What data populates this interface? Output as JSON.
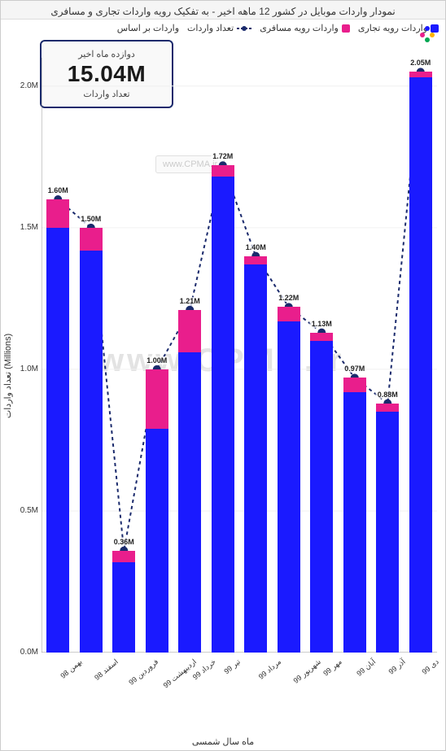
{
  "title": "نمودار واردات موبایل در کشور 12 ماهه اخیر - به تفکیک رویه واردات تجاری و مسافری",
  "legend": {
    "imports_by": {
      "label": "واردات بر اساس"
    },
    "total": {
      "label": "تعداد واردات",
      "color": "#1a2a6c",
      "style": "dashed-dot"
    },
    "passenger": {
      "label": "واردات رویه مسافری",
      "color": "#e91e8c"
    },
    "commercial": {
      "label": "واردات رویه تجاری",
      "color": "#1a1aff"
    }
  },
  "card": {
    "header": "دوازده ماه اخیر",
    "value": "15.04M",
    "footer": "تعداد واردات"
  },
  "watermark_small": "www.CPMA.ir",
  "watermark_big": "www.CPMA.ir",
  "axes": {
    "y": {
      "label": "تعداد واردات (Millions)",
      "min": 0.0,
      "max": 2.1,
      "ticks": [
        0.0,
        0.5,
        1.0,
        1.5,
        2.0
      ],
      "tick_labels": [
        "0.0M",
        "0.5M",
        "1.0M",
        "1.5M",
        "2.0M"
      ]
    },
    "x": {
      "label": "ماه سال شمسی"
    }
  },
  "chart": {
    "type": "stacked-bar-with-line",
    "bar_width_ratio": 0.68,
    "background": "#ffffff",
    "grid_color": "#f0f0f0",
    "categories": [
      "بهمن 98",
      "اسفند 98",
      "فروردین 99",
      "اردیبهشت 99",
      "خرداد 99",
      "تیر 99",
      "مرداد 99",
      "شهریور 99",
      "مهر 99",
      "آبان 99",
      "آذر 99",
      "دی 99"
    ],
    "series": {
      "commercial": {
        "color": "#1a1aff",
        "values": [
          1.5,
          1.42,
          0.32,
          0.79,
          1.06,
          1.68,
          1.37,
          1.17,
          1.1,
          0.92,
          0.85,
          2.03
        ]
      },
      "passenger": {
        "color": "#e91e8c",
        "values": [
          0.1,
          0.08,
          0.04,
          0.21,
          0.15,
          0.04,
          0.03,
          0.05,
          0.03,
          0.05,
          0.03,
          0.02
        ]
      }
    },
    "totals": {
      "values": [
        1.6,
        1.5,
        0.36,
        1.0,
        1.21,
        1.72,
        1.4,
        1.22,
        1.13,
        0.97,
        0.88,
        2.05
      ],
      "labels": [
        "1.60M",
        "1.50M",
        "0.36M",
        "1.00M",
        "1.21M",
        "1.72M",
        "1.40M",
        "1.22M",
        "1.13M",
        "0.97M",
        "0.88M",
        "2.05M"
      ],
      "line_color": "#1a2a6c",
      "marker_color": "#1a2a6c",
      "marker_size": 5,
      "dash": "4 4"
    }
  }
}
